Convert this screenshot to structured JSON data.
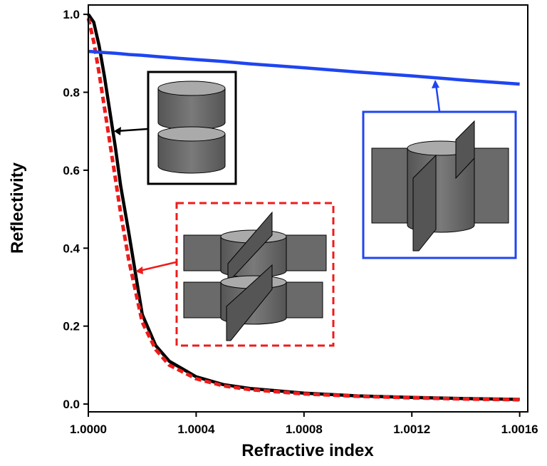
{
  "chart_data": {
    "type": "line",
    "xlabel": "Refractive index",
    "ylabel": "Reflectivity",
    "x": [
      1.0,
      1.00002,
      1.00004,
      1.00006,
      1.00008,
      1.0001,
      1.00012,
      1.00015,
      1.0002,
      1.00025,
      1.0003,
      1.0004,
      1.0005,
      1.0006,
      1.0008,
      1.001,
      1.0012,
      1.0014,
      1.0016
    ],
    "series": [
      {
        "color": "#000000",
        "style": "solid",
        "values": [
          1.0,
          0.98,
          0.92,
          0.84,
          0.75,
          0.66,
          0.56,
          0.44,
          0.23,
          0.15,
          0.11,
          0.07,
          0.05,
          0.04,
          0.028,
          0.021,
          0.017,
          0.014,
          0.012
        ]
      },
      {
        "color": "#ee1c1c",
        "style": "dashed",
        "values": [
          0.99,
          0.93,
          0.85,
          0.76,
          0.67,
          0.58,
          0.49,
          0.37,
          0.21,
          0.14,
          0.1,
          0.065,
          0.047,
          0.037,
          0.026,
          0.02,
          0.016,
          0.013,
          0.011
        ]
      },
      {
        "color": "#1f45f0",
        "style": "solid",
        "values": [
          0.905,
          0.904,
          0.903,
          0.902,
          0.901,
          0.9,
          0.899,
          0.897,
          0.895,
          0.892,
          0.889,
          0.884,
          0.879,
          0.873,
          0.863,
          0.852,
          0.842,
          0.831,
          0.821
        ]
      }
    ],
    "xlim": [
      1.0,
      1.00163
    ],
    "ylim": [
      -0.02,
      1.024
    ],
    "xticks": [
      {
        "value": 1.0,
        "label": "1.0000"
      },
      {
        "value": 1.0004,
        "label": "1.0004"
      },
      {
        "value": 1.0008,
        "label": "1.0008"
      },
      {
        "value": 1.0012,
        "label": "1.0012"
      },
      {
        "value": 1.0016,
        "label": "1.0016"
      }
    ],
    "yticks": [
      {
        "value": 0,
        "label": "0.0"
      },
      0.2,
      0.4,
      0.6,
      0.8,
      {
        "value": 1,
        "label": "1.0"
      }
    ]
  }
}
